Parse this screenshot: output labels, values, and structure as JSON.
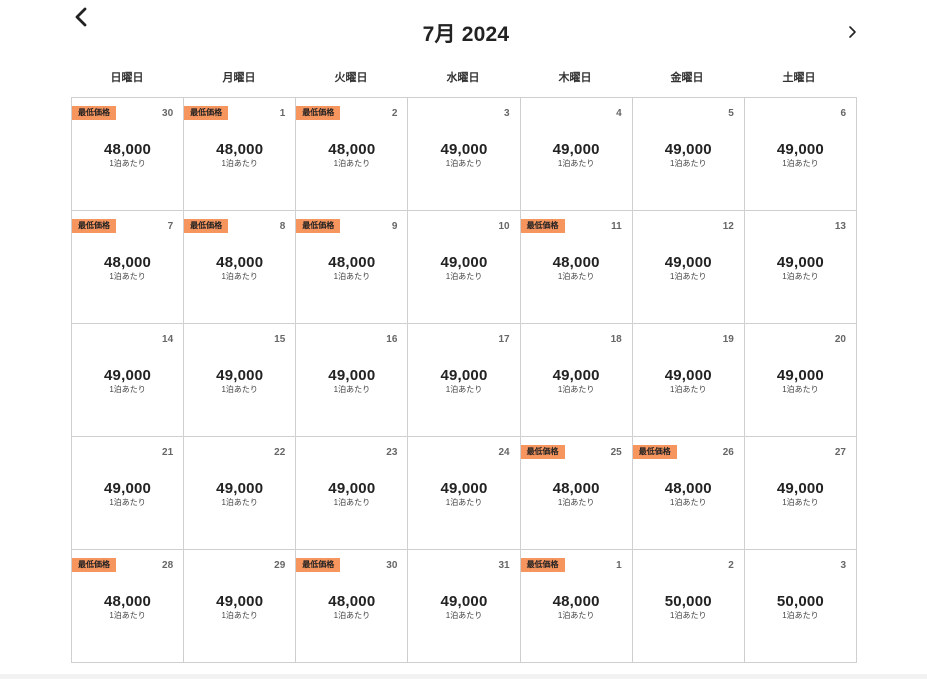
{
  "calendar": {
    "title": "7月 2024",
    "prev_icon": "chevron-left-icon",
    "next_icon": "chevron-right-icon",
    "weekdays": [
      "日曜日",
      "月曜日",
      "火曜日",
      "水曜日",
      "木曜日",
      "金曜日",
      "土曜日"
    ],
    "badge_color": "#f7955f",
    "per_night_label": "1泊あたり",
    "days": [
      {
        "day": "30",
        "price": "48,000",
        "badge": "最低価格"
      },
      {
        "day": "1",
        "price": "48,000",
        "badge": "最低価格"
      },
      {
        "day": "2",
        "price": "48,000",
        "badge": "最低価格"
      },
      {
        "day": "3",
        "price": "49,000",
        "badge": ""
      },
      {
        "day": "4",
        "price": "49,000",
        "badge": ""
      },
      {
        "day": "5",
        "price": "49,000",
        "badge": ""
      },
      {
        "day": "6",
        "price": "49,000",
        "badge": ""
      },
      {
        "day": "7",
        "price": "48,000",
        "badge": "最低価格"
      },
      {
        "day": "8",
        "price": "48,000",
        "badge": "最低価格"
      },
      {
        "day": "9",
        "price": "48,000",
        "badge": "最低価格"
      },
      {
        "day": "10",
        "price": "49,000",
        "badge": ""
      },
      {
        "day": "11",
        "price": "48,000",
        "badge": "最低価格"
      },
      {
        "day": "12",
        "price": "49,000",
        "badge": ""
      },
      {
        "day": "13",
        "price": "49,000",
        "badge": ""
      },
      {
        "day": "14",
        "price": "49,000",
        "badge": ""
      },
      {
        "day": "15",
        "price": "49,000",
        "badge": ""
      },
      {
        "day": "16",
        "price": "49,000",
        "badge": ""
      },
      {
        "day": "17",
        "price": "49,000",
        "badge": ""
      },
      {
        "day": "18",
        "price": "49,000",
        "badge": ""
      },
      {
        "day": "19",
        "price": "49,000",
        "badge": ""
      },
      {
        "day": "20",
        "price": "49,000",
        "badge": ""
      },
      {
        "day": "21",
        "price": "49,000",
        "badge": ""
      },
      {
        "day": "22",
        "price": "49,000",
        "badge": ""
      },
      {
        "day": "23",
        "price": "49,000",
        "badge": ""
      },
      {
        "day": "24",
        "price": "49,000",
        "badge": ""
      },
      {
        "day": "25",
        "price": "48,000",
        "badge": "最低価格"
      },
      {
        "day": "26",
        "price": "48,000",
        "badge": "最低価格"
      },
      {
        "day": "27",
        "price": "49,000",
        "badge": ""
      },
      {
        "day": "28",
        "price": "48,000",
        "badge": "最低価格"
      },
      {
        "day": "29",
        "price": "49,000",
        "badge": ""
      },
      {
        "day": "30",
        "price": "48,000",
        "badge": "最低価格"
      },
      {
        "day": "31",
        "price": "49,000",
        "badge": ""
      },
      {
        "day": "1",
        "price": "48,000",
        "badge": "最低価格"
      },
      {
        "day": "2",
        "price": "50,000",
        "badge": ""
      },
      {
        "day": "3",
        "price": "50,000",
        "badge": ""
      }
    ]
  }
}
